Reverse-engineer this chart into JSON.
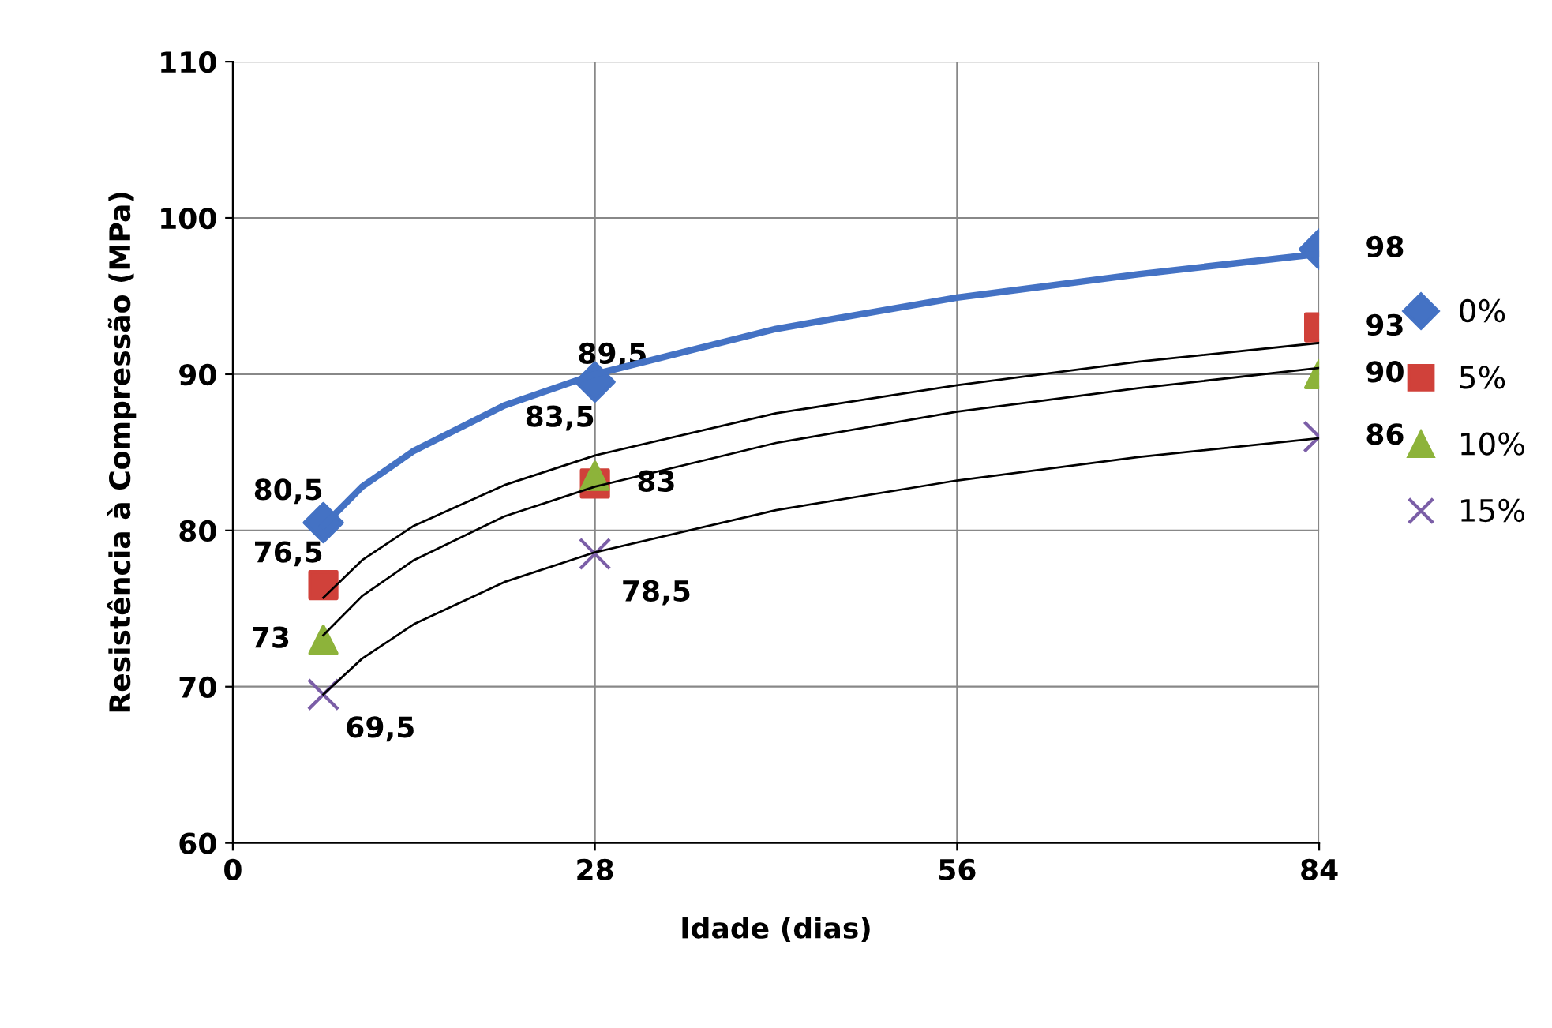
{
  "chart_data": {
    "type": "scatter",
    "xlabel": "Idade (dias)",
    "ylabel": "Resistência à Compressão (MPa)",
    "xlim": [
      0,
      84
    ],
    "xticks": [
      0,
      28,
      56,
      84
    ],
    "ylim": [
      60,
      110
    ],
    "yticks": [
      60,
      70,
      80,
      90,
      100,
      110
    ],
    "grid": true,
    "legend": "right",
    "series": [
      {
        "name": "0%",
        "color": "#4472c4",
        "marker": "diamond",
        "x": [
          7,
          28,
          84
        ],
        "values": [
          80.5,
          89.5,
          98
        ],
        "value_labels": [
          "80,5",
          "89,5",
          "98"
        ]
      },
      {
        "name": "5%",
        "color": "#d0413a",
        "marker": "square",
        "x": [
          7,
          28,
          84
        ],
        "values": [
          76.5,
          83,
          93
        ],
        "value_labels": [
          "76,5",
          "83",
          "93"
        ]
      },
      {
        "name": "10%",
        "color": "#8db33a",
        "marker": "triangle",
        "x": [
          7,
          28,
          84
        ],
        "values": [
          73,
          83.5,
          90
        ],
        "value_labels": [
          "73",
          "83,5",
          "90"
        ]
      },
      {
        "name": "15%",
        "color": "#7b5ea7",
        "marker": "cross",
        "x": [
          7,
          28,
          84
        ],
        "values": [
          69.5,
          78.5,
          86
        ],
        "value_labels": [
          "69,5",
          "78,5",
          "86"
        ]
      },
      {
        "type": "line",
        "color": "#4472c4",
        "x": [
          7,
          10,
          14,
          21,
          28,
          42,
          56,
          70,
          84
        ],
        "values": [
          80.3,
          82.8,
          85.1,
          88.0,
          90.0,
          92.9,
          94.9,
          96.4,
          97.7
        ]
      },
      {
        "type": "line",
        "color": "#000000",
        "x": [
          7,
          10,
          14,
          21,
          28,
          42,
          56,
          70,
          84
        ],
        "values": [
          75.7,
          78.1,
          80.3,
          82.9,
          84.8,
          87.5,
          89.3,
          90.8,
          92.0
        ]
      },
      {
        "type": "line",
        "color": "#000000",
        "x": [
          7,
          10,
          14,
          21,
          28,
          42,
          56,
          70,
          84
        ],
        "values": [
          73.3,
          75.8,
          78.1,
          80.9,
          82.8,
          85.6,
          87.6,
          89.1,
          90.4
        ]
      },
      {
        "type": "line",
        "color": "#000000",
        "x": [
          7,
          10,
          14,
          21,
          28,
          42,
          56,
          70,
          84
        ],
        "values": [
          69.5,
          71.8,
          74.0,
          76.7,
          78.6,
          81.3,
          83.2,
          84.7,
          85.9
        ]
      }
    ]
  }
}
